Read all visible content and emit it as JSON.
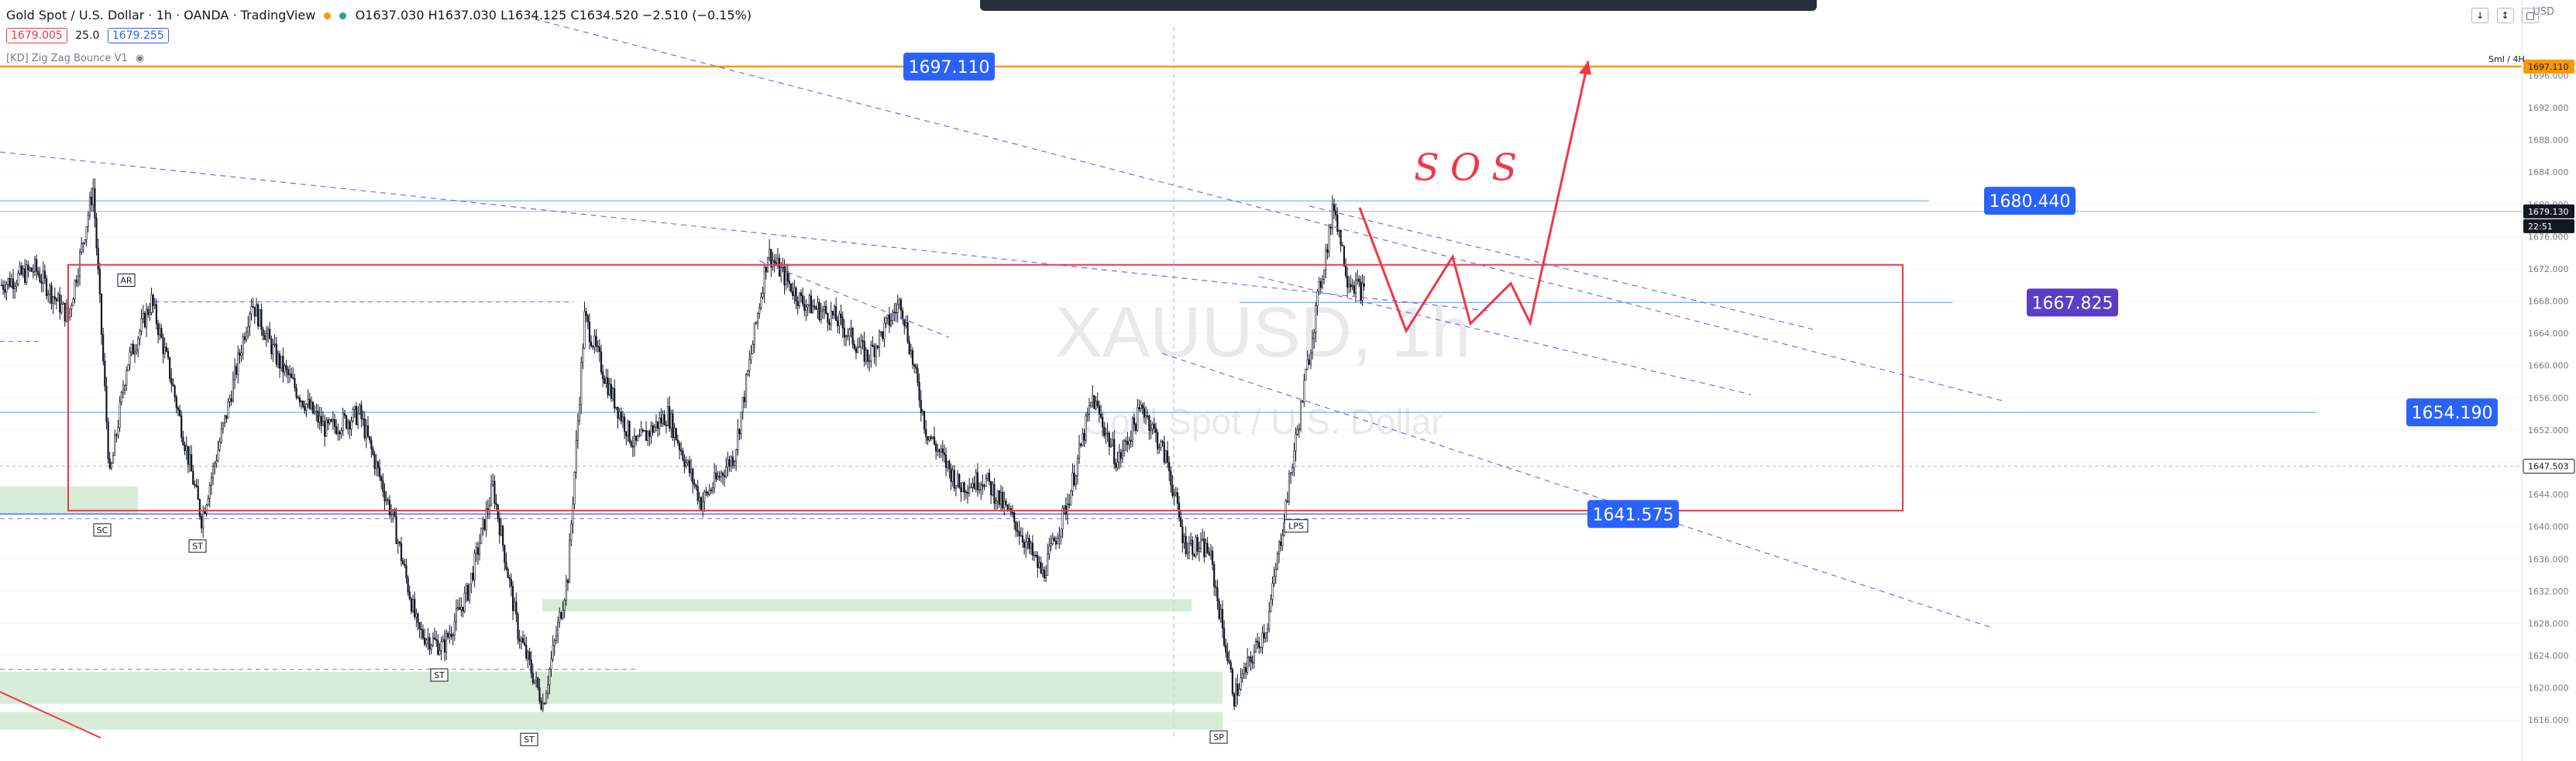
{
  "header": {
    "symbol": "Gold Spot / U.S. Dollar · 1h · OANDA · TradingView",
    "ohlc": "O1637.030  H1637.030  L1634.125  C1634.520  −2.510 (−0.15%)",
    "bid": "1679.005",
    "spread": "25.0",
    "ask": "1679.255",
    "indicator": "[KD] Zig Zag Bounce V1"
  },
  "watermark": {
    "symbol": "XAUUSD, 1h",
    "name": "Gold Spot / U.S. Dollar"
  },
  "top_right": {
    "currency": "USD",
    "session": "Sml / 4H"
  },
  "colors": {
    "up": "#131722",
    "down": "#131722",
    "accent_blue": "#2962ff",
    "purple": "#5b3ec8",
    "red": "#f23645",
    "orange": "#ff9800",
    "zone": "#c8e6c9",
    "channel": "#7b68ee"
  },
  "annotations": {
    "sos": "SOS"
  },
  "markers": [
    "AR",
    "SC",
    "ST",
    "ST",
    "LPS",
    "SP",
    "ST"
  ],
  "chart_data": {
    "type": "candlestick",
    "ylim": [
      1614,
      1702
    ],
    "y_ticks": [
      "1616.000",
      "1620.000",
      "1624.000",
      "1628.000",
      "1632.000",
      "1636.000",
      "1640.000",
      "1644.000",
      "1648.000",
      "1652.000",
      "1656.000",
      "1660.000",
      "1664.000",
      "1668.000",
      "1672.000",
      "1676.000",
      "1680.000",
      "1684.000",
      "1688.000",
      "1692.000",
      "1696.000"
    ],
    "price_labels": [
      {
        "text": "1697.110",
        "price": 1697.11,
        "style": "blue"
      },
      {
        "text": "1680.440",
        "price": 1680.44,
        "style": "blue"
      },
      {
        "text": "1667.825",
        "price": 1667.825,
        "style": "purple"
      },
      {
        "text": "1654.190",
        "price": 1654.19,
        "style": "blue"
      },
      {
        "text": "1641.575",
        "price": 1641.575,
        "style": "blue"
      }
    ],
    "axis_badges": [
      {
        "text": "1697.110",
        "price": 1697.11,
        "style": "orange"
      },
      {
        "text": "1679.130",
        "price": 1679.13,
        "style": "dark"
      },
      {
        "text": "22:51",
        "price": 1677.3,
        "style": "dark"
      },
      {
        "text": "1647.503",
        "price": 1647.503,
        "style": "outline"
      }
    ],
    "current_price": 1679.13,
    "waypoints": [
      [
        0,
        1670
      ],
      [
        20,
        1672
      ],
      [
        40,
        1666
      ],
      [
        55,
        1682
      ],
      [
        65,
        1646
      ],
      [
        75,
        1660
      ],
      [
        90,
        1668
      ],
      [
        100,
        1660
      ],
      [
        120,
        1641
      ],
      [
        135,
        1654
      ],
      [
        150,
        1668
      ],
      [
        165,
        1661
      ],
      [
        180,
        1656
      ],
      [
        195,
        1652
      ],
      [
        215,
        1654
      ],
      [
        235,
        1641
      ],
      [
        250,
        1627
      ],
      [
        265,
        1625
      ],
      [
        280,
        1632
      ],
      [
        295,
        1645
      ],
      [
        310,
        1627
      ],
      [
        325,
        1618
      ],
      [
        340,
        1634
      ],
      [
        350,
        1666
      ],
      [
        365,
        1657
      ],
      [
        380,
        1650
      ],
      [
        400,
        1654
      ],
      [
        420,
        1643
      ],
      [
        440,
        1649
      ],
      [
        460,
        1674
      ],
      [
        480,
        1668
      ],
      [
        500,
        1666
      ],
      [
        520,
        1661
      ],
      [
        540,
        1668
      ],
      [
        555,
        1652
      ],
      [
        575,
        1645
      ],
      [
        590,
        1646
      ],
      [
        610,
        1640
      ],
      [
        625,
        1634
      ],
      [
        640,
        1643
      ],
      [
        655,
        1656
      ],
      [
        670,
        1648
      ],
      [
        685,
        1655
      ],
      [
        700,
        1648
      ],
      [
        710,
        1638
      ],
      [
        725,
        1637
      ],
      [
        740,
        1619
      ],
      [
        760,
        1628
      ],
      [
        775,
        1648
      ],
      [
        790,
        1668
      ],
      [
        800,
        1680
      ],
      [
        808,
        1671
      ],
      [
        818,
        1669
      ]
    ]
  }
}
